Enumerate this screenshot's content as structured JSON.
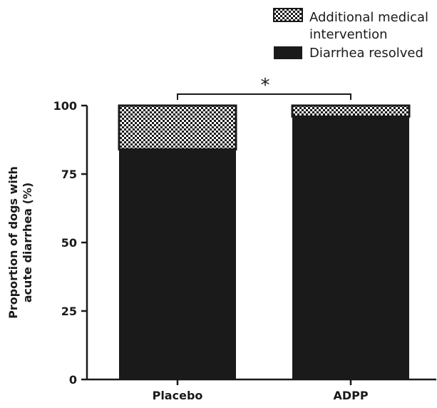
{
  "chart_data": {
    "type": "bar",
    "stacked": true,
    "categories": [
      "Placebo",
      "ADPP"
    ],
    "series": [
      {
        "name": "Diarrhea resolved",
        "values": [
          84,
          96
        ],
        "color": "#1a1a1a",
        "pattern": "solid"
      },
      {
        "name": "Additional medical intervention",
        "values": [
          16,
          4
        ],
        "color": "#1a1a1a",
        "pattern": "checker"
      }
    ],
    "ylabel_lines": [
      "Proportion of dogs with",
      "acute diarrhea (%)"
    ],
    "xlabel": "",
    "ylim": [
      0,
      100
    ],
    "yticks": [
      0,
      25,
      50,
      75,
      100
    ],
    "grid": false,
    "legend": {
      "placement": "top-right",
      "entries": [
        {
          "label_lines": [
            "Additional medical",
            "intervention"
          ],
          "pattern": "checker"
        },
        {
          "label_lines": [
            "Diarrhea resolved"
          ],
          "pattern": "solid"
        }
      ]
    },
    "annotations": [
      {
        "type": "significance-bracket",
        "between": [
          "Placebo",
          "ADPP"
        ],
        "text": "*"
      }
    ]
  }
}
